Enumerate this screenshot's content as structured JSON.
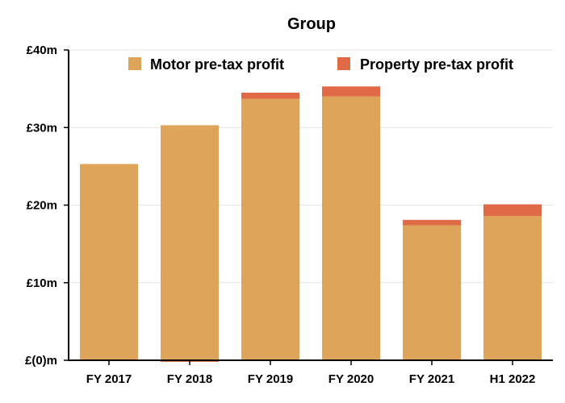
{
  "chart_data": {
    "type": "bar",
    "stacked": true,
    "title": "Group",
    "xlabel": "",
    "ylabel": "",
    "categories": [
      "FY 2017",
      "FY 2018",
      "FY 2019",
      "FY 2020",
      "FY 2021",
      "H1 2022"
    ],
    "series": [
      {
        "name": "Motor pre-tax profit",
        "color": "#dda45a",
        "values": [
          25.3,
          30.3,
          33.7,
          34.0,
          17.4,
          18.6
        ]
      },
      {
        "name": "Property pre-tax profit",
        "color": "#e06a48",
        "values": [
          0.0,
          -0.2,
          0.8,
          1.3,
          0.7,
          1.5
        ]
      }
    ],
    "ylim": [
      0,
      40
    ],
    "yticks": [
      0,
      10,
      20,
      30,
      40
    ],
    "ytick_labels": [
      "£(0)m",
      "£10m",
      "£20m",
      "£30m",
      "£40m"
    ],
    "grid": true,
    "legend": "top"
  }
}
